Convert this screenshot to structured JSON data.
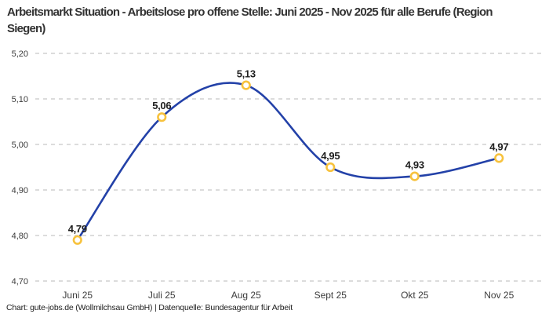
{
  "header": {
    "title": "Arbeitsmarkt Situation - Arbeitslose pro offene Stelle: Juni 2025 - Nov 2025 für alle Berufe (Region Siegen)"
  },
  "chart_data": {
    "type": "line",
    "title": "Arbeitsmarkt Situation - Arbeitslose pro offene Stelle: Juni 2025 - Nov 2025 für alle Berufe (Region Siegen)",
    "categories": [
      "Juni 25",
      "Juli 25",
      "Aug 25",
      "Sept 25",
      "Okt 25",
      "Nov 25"
    ],
    "values": [
      4.79,
      5.06,
      5.13,
      4.95,
      4.93,
      4.97
    ],
    "point_labels": [
      "4,79",
      "5,06",
      "5,13",
      "4,95",
      "4,93",
      "4,97"
    ],
    "xlabel": "",
    "ylabel": "",
    "ylim": [
      4.7,
      5.2
    ],
    "yticks": [
      4.7,
      4.8,
      4.9,
      5.0,
      5.1,
      5.2
    ],
    "ytick_labels": [
      "4,70",
      "4,80",
      "4,90",
      "5,00",
      "5,10",
      "5,20"
    ],
    "grid": "horizontal-dashed",
    "legend": "none",
    "smooth": true,
    "colors": {
      "line": "#2341A8",
      "marker_ring": "#F7C23D",
      "marker_fill": "#FFFFFF",
      "grid": "#C6C6C6",
      "tick_text": "#3C3C3C",
      "label_text": "#1F1F1F"
    }
  },
  "footer": {
    "attribution": "Chart: gute-jobs.de (Wollmilchsau GmbH) | Datenquelle: Bundesagentur für Arbeit"
  }
}
